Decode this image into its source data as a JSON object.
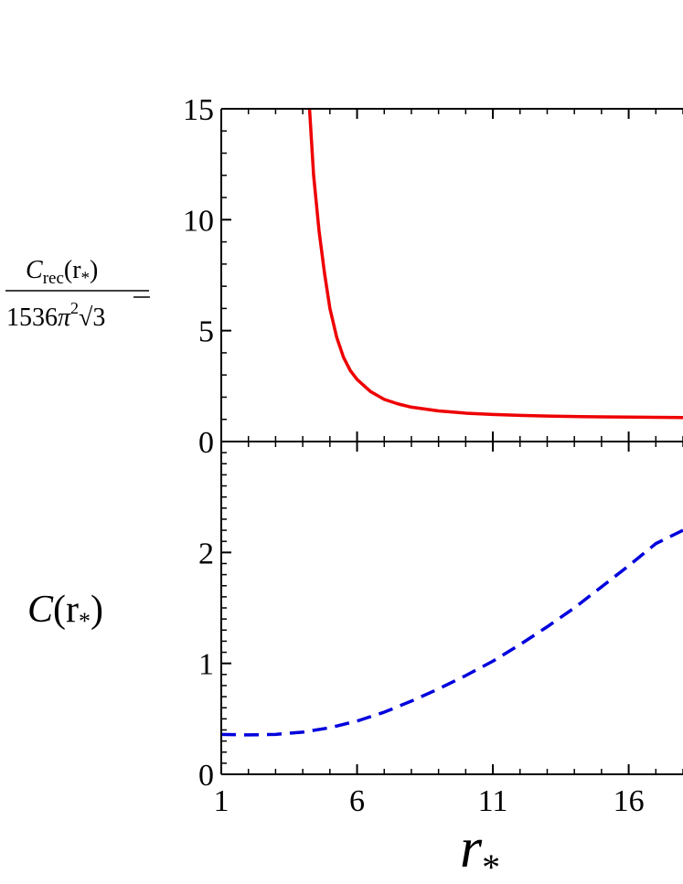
{
  "chart_data": [
    {
      "type": "line",
      "ylabel": {
        "numerator": {
          "symbol": "C",
          "subscript": "rec",
          "argument": "(r",
          "argument_sub": "*",
          "argument_close": ")"
        },
        "denominator": {
          "number": "1536",
          "symbol": "π",
          "power": "2",
          "root_sign": "√",
          "root_value": "3"
        }
      },
      "xlim": [
        1,
        18
      ],
      "ylim": [
        0,
        15
      ],
      "y_ticks": [
        "0",
        "5",
        "10",
        "15"
      ],
      "grid": false,
      "series": [
        {
          "style": "solid",
          "color": "#ee0000",
          "points": [
            [
              4.25,
              15.0
            ],
            [
              4.4,
              12.0
            ],
            [
              4.6,
              9.5
            ],
            [
              4.8,
              7.6
            ],
            [
              5.0,
              6.0
            ],
            [
              5.25,
              4.7
            ],
            [
              5.5,
              3.8
            ],
            [
              5.75,
              3.2
            ],
            [
              6.0,
              2.8
            ],
            [
              6.5,
              2.25
            ],
            [
              7.0,
              1.9
            ],
            [
              7.5,
              1.7
            ],
            [
              8.0,
              1.55
            ],
            [
              9.0,
              1.38
            ],
            [
              10.0,
              1.28
            ],
            [
              11.0,
              1.22
            ],
            [
              12.0,
              1.18
            ],
            [
              13.0,
              1.15
            ],
            [
              14.0,
              1.13
            ],
            [
              15.0,
              1.11
            ],
            [
              16.0,
              1.1
            ],
            [
              17.0,
              1.09
            ],
            [
              18.0,
              1.08
            ]
          ]
        }
      ]
    },
    {
      "type": "line",
      "ylabel": {
        "symbol": "C",
        "argument": "(r",
        "argument_sub": "*",
        "argument_close": ")"
      },
      "xlabel": {
        "symbol": "r",
        "subscript": "*"
      },
      "xlim": [
        1,
        18
      ],
      "ylim": [
        0,
        3
      ],
      "x_ticks": [
        "1",
        "6",
        "11",
        "16"
      ],
      "y_ticks": [
        "0",
        "1",
        "2"
      ],
      "grid": false,
      "series": [
        {
          "style": "dashed",
          "color": "#0000dd",
          "points": [
            [
              1.0,
              0.36
            ],
            [
              2.0,
              0.355
            ],
            [
              3.0,
              0.36
            ],
            [
              4.0,
              0.38
            ],
            [
              5.0,
              0.42
            ],
            [
              6.0,
              0.48
            ],
            [
              7.0,
              0.56
            ],
            [
              8.0,
              0.66
            ],
            [
              9.0,
              0.77
            ],
            [
              10.0,
              0.89
            ],
            [
              11.0,
              1.02
            ],
            [
              12.0,
              1.17
            ],
            [
              13.0,
              1.33
            ],
            [
              14.0,
              1.5
            ],
            [
              15.0,
              1.69
            ],
            [
              16.0,
              1.88
            ],
            [
              17.0,
              2.08
            ],
            [
              18.0,
              2.2
            ]
          ]
        }
      ]
    }
  ]
}
